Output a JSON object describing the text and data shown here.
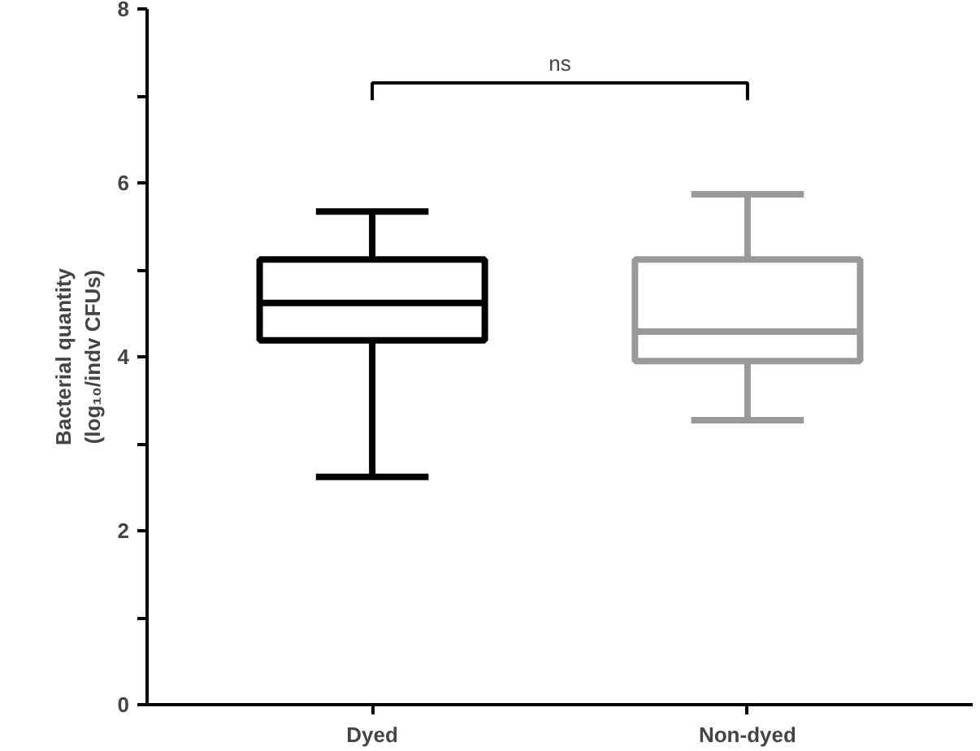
{
  "chart_data": {
    "type": "box",
    "ylabel": "Bacterial quantity\n(log₁₀/indv CFUs)",
    "categories": [
      "Dyed",
      "Non-dyed"
    ],
    "boxes": [
      {
        "low": 2.62,
        "q1": 4.19,
        "median": 4.62,
        "q3": 5.12,
        "high": 5.67
      },
      {
        "low": 3.27,
        "q1": 3.95,
        "median": 4.29,
        "q3": 5.12,
        "high": 5.87
      }
    ],
    "colors": [
      "#000000",
      "#999999"
    ],
    "ylim": [
      0,
      8
    ],
    "yticks": [
      0,
      {
        "value": 1,
        "label": null
      },
      2,
      {
        "value": 3,
        "label": null
      },
      4,
      {
        "value": 5,
        "label": null
      },
      6,
      {
        "value": 7,
        "label": null
      },
      8
    ],
    "grid": false,
    "annotations": [
      "ns"
    ]
  }
}
